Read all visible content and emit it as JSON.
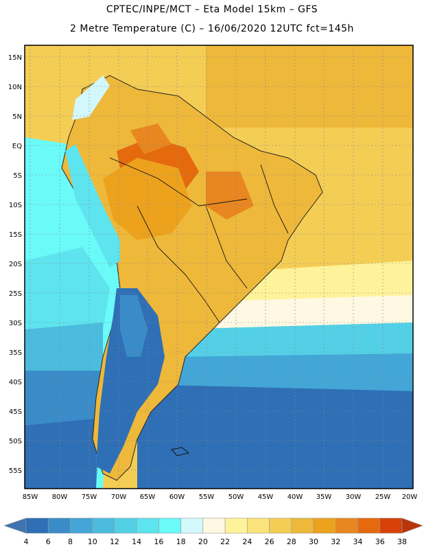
{
  "title_line1": "CPTEC/INPE/MCT –  Eta Model 15km – GFS",
  "title_line2": "2 Metre Temperature (C) – 16/06/2020 12UTC fct=145h",
  "lat_labels": [
    "15N",
    "10N",
    "5N",
    "EQ",
    "5S",
    "10S",
    "15S",
    "20S",
    "25S",
    "30S",
    "35S",
    "40S",
    "45S",
    "50S",
    "55S"
  ],
  "lon_labels": [
    "85W",
    "80W",
    "75W",
    "70W",
    "65W",
    "60W",
    "55W",
    "50W",
    "45W",
    "40W",
    "35W",
    "30W",
    "25W",
    "20W"
  ],
  "colorbar": {
    "labels": [
      "4",
      "6",
      "8",
      "10",
      "12",
      "14",
      "16",
      "18",
      "20",
      "22",
      "24",
      "26",
      "28",
      "30",
      "32",
      "34",
      "36",
      "38"
    ],
    "colors": [
      "#3f74b0",
      "#2f6fb5",
      "#3a8cc8",
      "#43a6d6",
      "#4bbcde",
      "#54d0e6",
      "#5ee4ee",
      "#6afaf8",
      "#d2f8fb",
      "#fff8e2",
      "#fef39a",
      "#fbe37b",
      "#f4cd55",
      "#eeb83a",
      "#eda21d",
      "#e8861f",
      "#e56a0e",
      "#d6420a",
      "#b9350d"
    ]
  }
}
